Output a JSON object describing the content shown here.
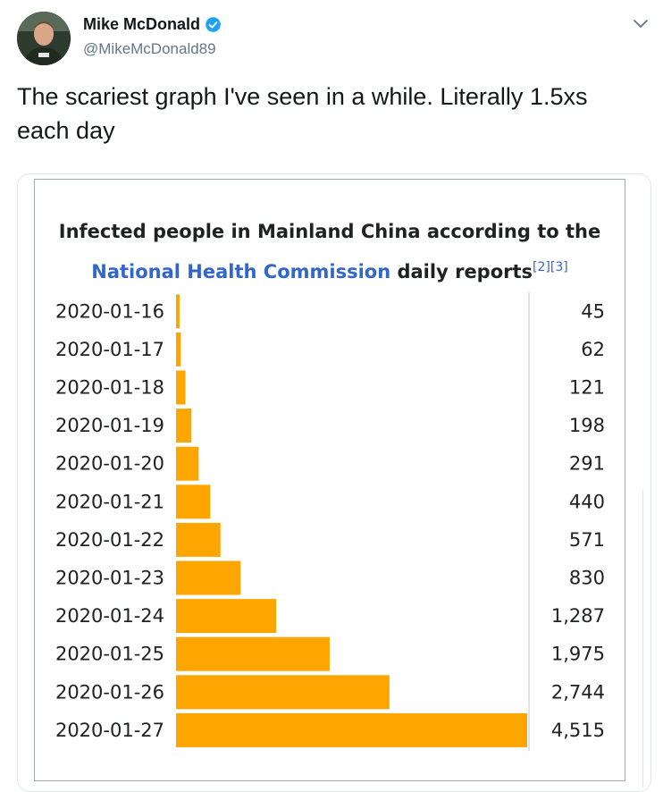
{
  "tweet": {
    "display_name": "Mike McDonald",
    "handle": "@MikeMcDonald89",
    "text": "The scariest graph I've seen in a while. Literally 1.5xs each day",
    "verified_icon": "verified-badge-icon",
    "more_icon": "chevron-down-icon",
    "colors": {
      "name": "#14171a",
      "handle": "#657786",
      "verified": "#1da1f2"
    }
  },
  "chart_data": {
    "type": "bar",
    "orientation": "horizontal",
    "title_line1": "Infected people in Mainland China according to the",
    "title_link": "National Health Commission",
    "title_rest": " daily reports",
    "title_refs": "[2][3]",
    "categories": [
      "2020-01-16",
      "2020-01-17",
      "2020-01-18",
      "2020-01-19",
      "2020-01-20",
      "2020-01-21",
      "2020-01-22",
      "2020-01-23",
      "2020-01-24",
      "2020-01-25",
      "2020-01-26",
      "2020-01-27"
    ],
    "values": [
      45,
      62,
      121,
      198,
      291,
      440,
      571,
      830,
      1287,
      1975,
      2744,
      4515
    ],
    "value_labels": [
      "45",
      "62",
      "121",
      "198",
      "291",
      "440",
      "571",
      "830",
      "1,287",
      "1,975",
      "2,744",
      "4,515"
    ],
    "xlim": [
      0,
      4515
    ],
    "bar_color": "#ffa500",
    "grid": false
  }
}
